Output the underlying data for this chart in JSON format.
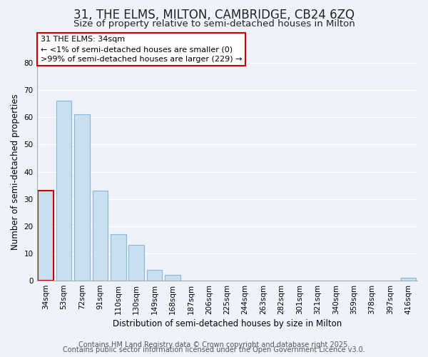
{
  "title": "31, THE ELMS, MILTON, CAMBRIDGE, CB24 6ZQ",
  "subtitle": "Size of property relative to semi-detached houses in Milton",
  "xlabel": "Distribution of semi-detached houses by size in Milton",
  "ylabel": "Number of semi-detached properties",
  "bin_labels": [
    "34sqm",
    "53sqm",
    "72sqm",
    "91sqm",
    "110sqm",
    "130sqm",
    "149sqm",
    "168sqm",
    "187sqm",
    "206sqm",
    "225sqm",
    "244sqm",
    "263sqm",
    "282sqm",
    "301sqm",
    "321sqm",
    "340sqm",
    "359sqm",
    "378sqm",
    "397sqm",
    "416sqm"
  ],
  "values": [
    33,
    66,
    61,
    33,
    17,
    13,
    4,
    2,
    0,
    0,
    0,
    0,
    0,
    0,
    0,
    0,
    0,
    0,
    0,
    0,
    1
  ],
  "bar_color": "#c8dff0",
  "bar_edge_color": "#8ab8d8",
  "highlight_index": 0,
  "highlight_edge_color": "#cc0000",
  "ylim": [
    0,
    80
  ],
  "yticks": [
    0,
    10,
    20,
    30,
    40,
    50,
    60,
    70,
    80
  ],
  "annotation_title": "31 THE ELMS: 34sqm",
  "annotation_line1": "← <1% of semi-detached houses are smaller (0)",
  "annotation_line2": ">99% of semi-detached houses are larger (229) →",
  "annotation_box_facecolor": "#ffffff",
  "annotation_edge_color": "#cc0000",
  "footer_line1": "Contains HM Land Registry data © Crown copyright and database right 2025.",
  "footer_line2": "Contains public sector information licensed under the Open Government Licence v3.0.",
  "background_color": "#eef2fb",
  "grid_color": "#ffffff",
  "title_fontsize": 12,
  "subtitle_fontsize": 9.5,
  "axis_label_fontsize": 8.5,
  "tick_fontsize": 7.5,
  "annotation_fontsize": 8,
  "footer_fontsize": 7
}
